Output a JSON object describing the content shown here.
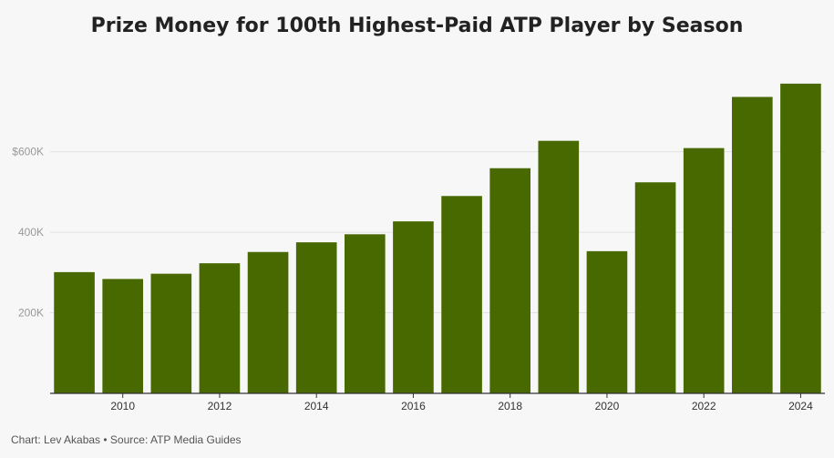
{
  "chart_data": {
    "type": "bar",
    "title": "Prize Money for 100th Highest-Paid ATP Player by Season",
    "xlabel": "",
    "ylabel": "",
    "categories": [
      "2009",
      "2010",
      "2011",
      "2012",
      "2013",
      "2014",
      "2015",
      "2016",
      "2017",
      "2018",
      "2019",
      "2020",
      "2021",
      "2022",
      "2023",
      "2024"
    ],
    "x_tick_labels": [
      "2010",
      "2012",
      "2014",
      "2016",
      "2018",
      "2020",
      "2022",
      "2024"
    ],
    "values": [
      301000,
      284000,
      297000,
      323000,
      351000,
      375000,
      395000,
      427000,
      490000,
      559000,
      627000,
      353000,
      524000,
      609000,
      736000,
      769000
    ],
    "y_ticks": [
      {
        "value": 200000,
        "label": "200K"
      },
      {
        "value": 400000,
        "label": "400K"
      },
      {
        "value": 600000,
        "label": "$600K"
      }
    ],
    "ylim": [
      0,
      780000
    ],
    "grid": true,
    "bar_color": "#476900"
  },
  "footer": "Chart: Lev Akabas • Source: ATP Media Guides"
}
